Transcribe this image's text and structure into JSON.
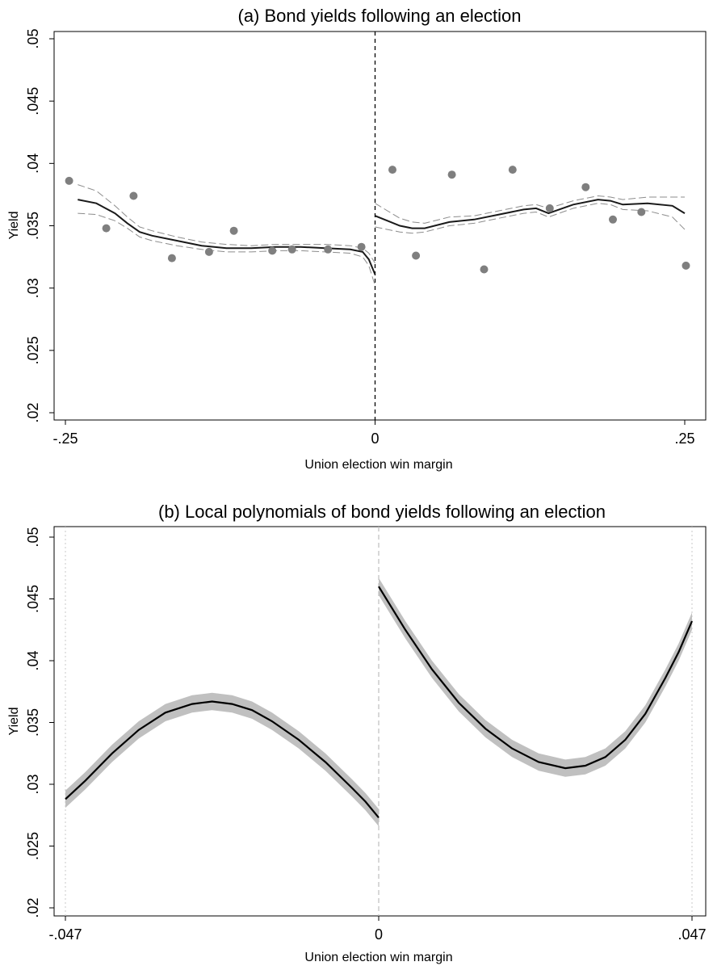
{
  "chart_data": [
    {
      "type": "scatter",
      "title": "(a) Bond yields following an election",
      "xlabel": "Union election win margin",
      "ylabel": "Yield",
      "xlim": [
        -0.25,
        0.25
      ],
      "ylim": [
        0.02,
        0.05
      ],
      "xticks": [
        -0.25,
        0,
        0.25
      ],
      "xtick_labels": [
        "-.25",
        "0",
        ".25"
      ],
      "yticks": [
        0.02,
        0.025,
        0.03,
        0.035,
        0.04,
        0.045,
        0.05
      ],
      "ytick_labels": [
        ".02",
        ".025",
        ".03",
        ".035",
        ".04",
        ".045",
        ".05"
      ],
      "cutoff": 0,
      "grid": false,
      "points": [
        {
          "x": -0.247,
          "y": 0.0386
        },
        {
          "x": -0.217,
          "y": 0.0348
        },
        {
          "x": -0.195,
          "y": 0.0374
        },
        {
          "x": -0.164,
          "y": 0.0324
        },
        {
          "x": -0.134,
          "y": 0.0329
        },
        {
          "x": -0.114,
          "y": 0.0346
        },
        {
          "x": -0.083,
          "y": 0.033
        },
        {
          "x": -0.067,
          "y": 0.0331
        },
        {
          "x": -0.038,
          "y": 0.0331
        },
        {
          "x": -0.011,
          "y": 0.0333
        },
        {
          "x": 0.014,
          "y": 0.0395
        },
        {
          "x": 0.033,
          "y": 0.0326
        },
        {
          "x": 0.062,
          "y": 0.0391
        },
        {
          "x": 0.088,
          "y": 0.0315
        },
        {
          "x": 0.111,
          "y": 0.0395
        },
        {
          "x": 0.141,
          "y": 0.0364
        },
        {
          "x": 0.17,
          "y": 0.0381
        },
        {
          "x": 0.192,
          "y": 0.0355
        },
        {
          "x": 0.215,
          "y": 0.0361
        },
        {
          "x": 0.251,
          "y": 0.0318
        }
      ],
      "fit_left": {
        "x": [
          -0.24,
          -0.225,
          -0.21,
          -0.2,
          -0.19,
          -0.18,
          -0.16,
          -0.14,
          -0.12,
          -0.1,
          -0.08,
          -0.06,
          -0.04,
          -0.02,
          -0.01,
          -0.005,
          0
        ],
        "y": [
          0.0371,
          0.0368,
          0.036,
          0.0352,
          0.0345,
          0.0342,
          0.0338,
          0.0334,
          0.0332,
          0.0332,
          0.0333,
          0.0333,
          0.0332,
          0.0331,
          0.0329,
          0.0323,
          0.0311
        ]
      },
      "ci_left_upper": {
        "x": [
          -0.24,
          -0.225,
          -0.21,
          -0.2,
          -0.19,
          -0.18,
          -0.16,
          -0.14,
          -0.12,
          -0.1,
          -0.08,
          -0.06,
          -0.04,
          -0.02,
          -0.01,
          -0.005,
          0
        ],
        "y": [
          0.0383,
          0.0378,
          0.0366,
          0.0357,
          0.0349,
          0.0346,
          0.0341,
          0.0337,
          0.0335,
          0.0334,
          0.0335,
          0.0335,
          0.0335,
          0.0334,
          0.0332,
          0.0328,
          0.032
        ]
      },
      "ci_left_lower": {
        "x": [
          -0.24,
          -0.225,
          -0.21,
          -0.2,
          -0.19,
          -0.18,
          -0.16,
          -0.14,
          -0.12,
          -0.1,
          -0.08,
          -0.06,
          -0.04,
          -0.02,
          -0.01,
          -0.005,
          0
        ],
        "y": [
          0.036,
          0.0359,
          0.0354,
          0.0348,
          0.0341,
          0.0338,
          0.0334,
          0.0331,
          0.0329,
          0.0329,
          0.033,
          0.033,
          0.0329,
          0.0328,
          0.0325,
          0.0318,
          0.0302
        ]
      },
      "fit_right": {
        "x": [
          0,
          0.01,
          0.02,
          0.03,
          0.04,
          0.06,
          0.08,
          0.1,
          0.12,
          0.13,
          0.14,
          0.16,
          0.18,
          0.19,
          0.2,
          0.22,
          0.24,
          0.25
        ],
        "y": [
          0.0358,
          0.0354,
          0.035,
          0.0348,
          0.0348,
          0.0353,
          0.0355,
          0.0359,
          0.0363,
          0.0364,
          0.036,
          0.0367,
          0.0371,
          0.037,
          0.0367,
          0.0368,
          0.0366,
          0.036
        ]
      },
      "ci_right_upper": {
        "x": [
          0,
          0.01,
          0.02,
          0.03,
          0.04,
          0.06,
          0.08,
          0.1,
          0.12,
          0.13,
          0.14,
          0.16,
          0.18,
          0.19,
          0.2,
          0.22,
          0.24,
          0.25
        ],
        "y": [
          0.0368,
          0.0362,
          0.0356,
          0.0353,
          0.0352,
          0.0357,
          0.0358,
          0.0362,
          0.0366,
          0.0367,
          0.0364,
          0.037,
          0.0374,
          0.0373,
          0.0371,
          0.0373,
          0.0373,
          0.0373
        ]
      },
      "ci_right_lower": {
        "x": [
          0,
          0.01,
          0.02,
          0.03,
          0.04,
          0.06,
          0.08,
          0.1,
          0.12,
          0.13,
          0.14,
          0.16,
          0.18,
          0.19,
          0.2,
          0.22,
          0.24,
          0.25
        ],
        "y": [
          0.0349,
          0.0347,
          0.0345,
          0.0344,
          0.0345,
          0.035,
          0.0352,
          0.0356,
          0.036,
          0.0361,
          0.0357,
          0.0364,
          0.0368,
          0.0367,
          0.0363,
          0.0362,
          0.0357,
          0.0347
        ]
      },
      "colors": {
        "points": "#7f7f7f",
        "fit": "#1a1a1a",
        "ci": "#8c8c8c",
        "cutoff": "#000000"
      }
    },
    {
      "type": "line",
      "title": "(b) Local polynomials of bond yields following an election",
      "xlabel": "Union election win margin",
      "ylabel": "Yield",
      "xlim": [
        -0.047,
        0.047
      ],
      "ylim": [
        0.02,
        0.05
      ],
      "xticks": [
        -0.047,
        0,
        0.047
      ],
      "xtick_labels": [
        "-.047",
        "0",
        ".047"
      ],
      "yticks": [
        0.02,
        0.025,
        0.03,
        0.035,
        0.04,
        0.045,
        0.05
      ],
      "ytick_labels": [
        ".02",
        ".025",
        ".03",
        ".035",
        ".04",
        ".045",
        ".05"
      ],
      "cutoff": 0,
      "bandwidth_lines": [
        -0.047,
        0.047
      ],
      "grid": false,
      "fit_left": {
        "x": [
          -0.047,
          -0.044,
          -0.04,
          -0.036,
          -0.032,
          -0.028,
          -0.025,
          -0.022,
          -0.019,
          -0.016,
          -0.012,
          -0.008,
          -0.004,
          -0.002,
          0
        ],
        "y": [
          0.0288,
          0.0303,
          0.0325,
          0.0344,
          0.0358,
          0.0365,
          0.0367,
          0.0365,
          0.036,
          0.0351,
          0.0336,
          0.0318,
          0.0297,
          0.0286,
          0.0273
        ]
      },
      "band_left": 0.0007,
      "fit_right": {
        "x": [
          0,
          0.004,
          0.008,
          0.012,
          0.016,
          0.02,
          0.024,
          0.028,
          0.031,
          0.034,
          0.037,
          0.04,
          0.043,
          0.045,
          0.047
        ],
        "y": [
          0.046,
          0.0425,
          0.0393,
          0.0366,
          0.0345,
          0.0329,
          0.0318,
          0.0313,
          0.0315,
          0.0322,
          0.0336,
          0.0357,
          0.0386,
          0.0407,
          0.0432
        ]
      },
      "band_right": 0.0007,
      "colors": {
        "fit": "#000000",
        "band": "#c0c0c0",
        "cutoff": "#bdbdbd",
        "bandwidth": "#c8c8c8"
      }
    }
  ]
}
